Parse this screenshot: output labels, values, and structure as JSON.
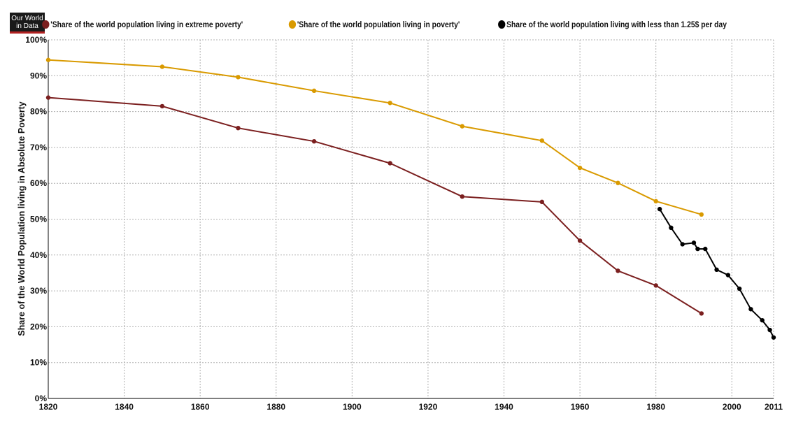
{
  "logo": {
    "line1": "Our World",
    "line2": "in Data"
  },
  "legend": [
    {
      "label": "'Share of the world population living in extreme poverty'",
      "color": "#7b1f1f"
    },
    {
      "label": "'Share of the world population living in poverty'",
      "color": "#d99a00"
    },
    {
      "label": "Share of the world population living with less than 1.25$ per day",
      "color": "#000000"
    }
  ],
  "chart_data": {
    "type": "line",
    "title": "",
    "xlabel": "",
    "ylabel": "Share of the World Population living in Absolute Poverty",
    "xlim": [
      1820,
      2011
    ],
    "ylim": [
      0,
      100
    ],
    "x_ticks": [
      1820,
      1840,
      1860,
      1880,
      1900,
      1920,
      1940,
      1960,
      1980,
      2000,
      2011
    ],
    "y_ticks": [
      0,
      10,
      20,
      30,
      40,
      50,
      60,
      70,
      80,
      90,
      100
    ],
    "y_tick_labels": [
      "0%",
      "10%",
      "20%",
      "30%",
      "40%",
      "50%",
      "60%",
      "70%",
      "80%",
      "90%",
      "100%"
    ],
    "grid": true,
    "legend_position": "top",
    "series": [
      {
        "name": "'Share of the world population living in extreme poverty'",
        "color": "#7b1f1f",
        "points": [
          [
            1820,
            83.9
          ],
          [
            1850,
            81.5
          ],
          [
            1870,
            75.4
          ],
          [
            1890,
            71.7
          ],
          [
            1910,
            65.6
          ],
          [
            1929,
            56.3
          ],
          [
            1950,
            54.8
          ],
          [
            1960,
            44.0
          ],
          [
            1970,
            35.6
          ],
          [
            1980,
            31.5
          ],
          [
            1992,
            23.7
          ]
        ]
      },
      {
        "name": "'Share of the world population living in poverty'",
        "color": "#d99a00",
        "points": [
          [
            1820,
            94.4
          ],
          [
            1850,
            92.5
          ],
          [
            1870,
            89.6
          ],
          [
            1890,
            85.8
          ],
          [
            1910,
            82.4
          ],
          [
            1929,
            75.9
          ],
          [
            1950,
            71.9
          ],
          [
            1960,
            64.3
          ],
          [
            1970,
            60.1
          ],
          [
            1980,
            55.0
          ],
          [
            1992,
            51.3
          ]
        ]
      },
      {
        "name": "Share of the world population living with less than 1.25$ per day",
        "color": "#000000",
        "points": [
          [
            1981,
            52.8
          ],
          [
            1984,
            47.6
          ],
          [
            1987,
            43.0
          ],
          [
            1990,
            43.4
          ],
          [
            1991,
            41.7
          ],
          [
            1993,
            41.7
          ],
          [
            1996,
            35.9
          ],
          [
            1999,
            34.4
          ],
          [
            2002,
            30.6
          ],
          [
            2005,
            24.9
          ],
          [
            2008,
            21.8
          ],
          [
            2010,
            19.1
          ],
          [
            2011,
            17.0
          ]
        ]
      }
    ]
  }
}
